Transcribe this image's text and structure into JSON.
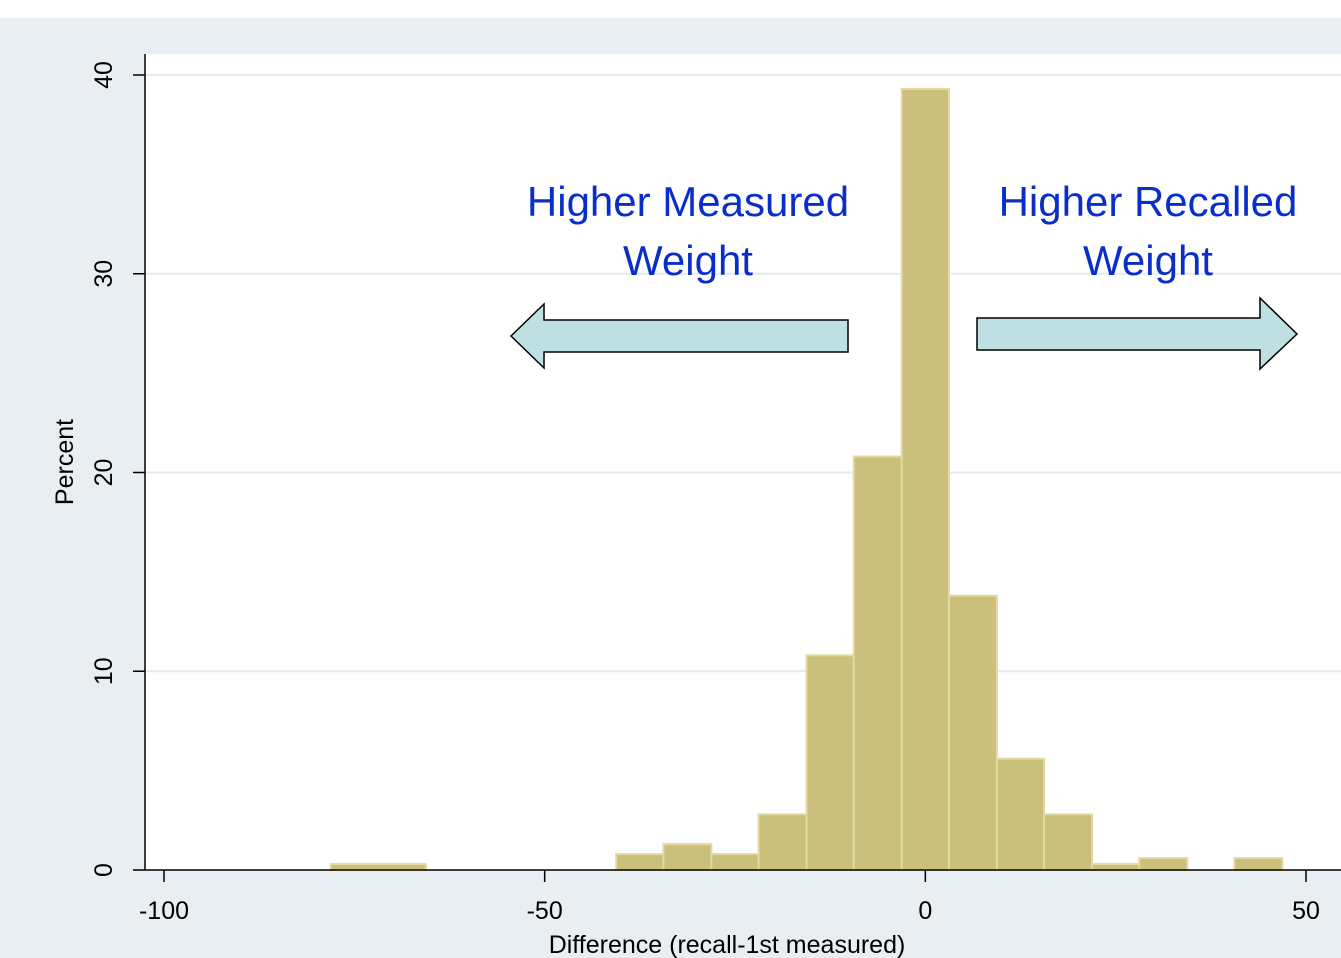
{
  "chart_data": {
    "type": "bar",
    "subtype": "histogram",
    "xlabel": "Difference (recall-1st measured)",
    "ylabel": "Percent",
    "xlim": [
      -100,
      50
    ],
    "ylim": [
      0,
      40
    ],
    "xticks": [
      -100,
      -50,
      0,
      50
    ],
    "yticks": [
      0,
      10,
      20,
      30,
      40
    ],
    "grid": true,
    "bin_width": 6.25,
    "bins": [
      {
        "start": -78.1,
        "end": -65.6,
        "value": 0.3
      },
      {
        "start": -40.6,
        "end": -34.4,
        "value": 0.8
      },
      {
        "start": -34.4,
        "end": -28.1,
        "value": 1.3
      },
      {
        "start": -28.1,
        "end": -21.9,
        "value": 0.8
      },
      {
        "start": -21.9,
        "end": -15.6,
        "value": 2.8
      },
      {
        "start": -15.6,
        "end": -9.4,
        "value": 10.8
      },
      {
        "start": -9.4,
        "end": -3.1,
        "value": 20.8
      },
      {
        "start": -3.1,
        "end": 3.1,
        "value": 39.3
      },
      {
        "start": 3.1,
        "end": 9.4,
        "value": 13.8
      },
      {
        "start": 9.4,
        "end": 15.6,
        "value": 5.6
      },
      {
        "start": 15.6,
        "end": 21.9,
        "value": 2.8
      },
      {
        "start": 21.9,
        "end": 28.1,
        "value": 0.3
      },
      {
        "start": 28.1,
        "end": 34.4,
        "value": 0.6
      },
      {
        "start": 40.6,
        "end": 46.9,
        "value": 0.6
      }
    ],
    "annotations": [
      {
        "lines": [
          "Higher Measured",
          "Weight"
        ],
        "direction": "left"
      },
      {
        "lines": [
          "Higher Recalled",
          "Weight"
        ],
        "direction": "right"
      }
    ]
  },
  "colors": {
    "background": "#e8eef2",
    "plot_area": "#ffffff",
    "bar_fill": "#cbbf7c",
    "bar_stroke": "#e2d9a3",
    "grid": "#e4ecf0",
    "annotation_text": "#0a2ec9",
    "arrow_fill": "#bfe0e2",
    "arrow_stroke": "#000000"
  }
}
